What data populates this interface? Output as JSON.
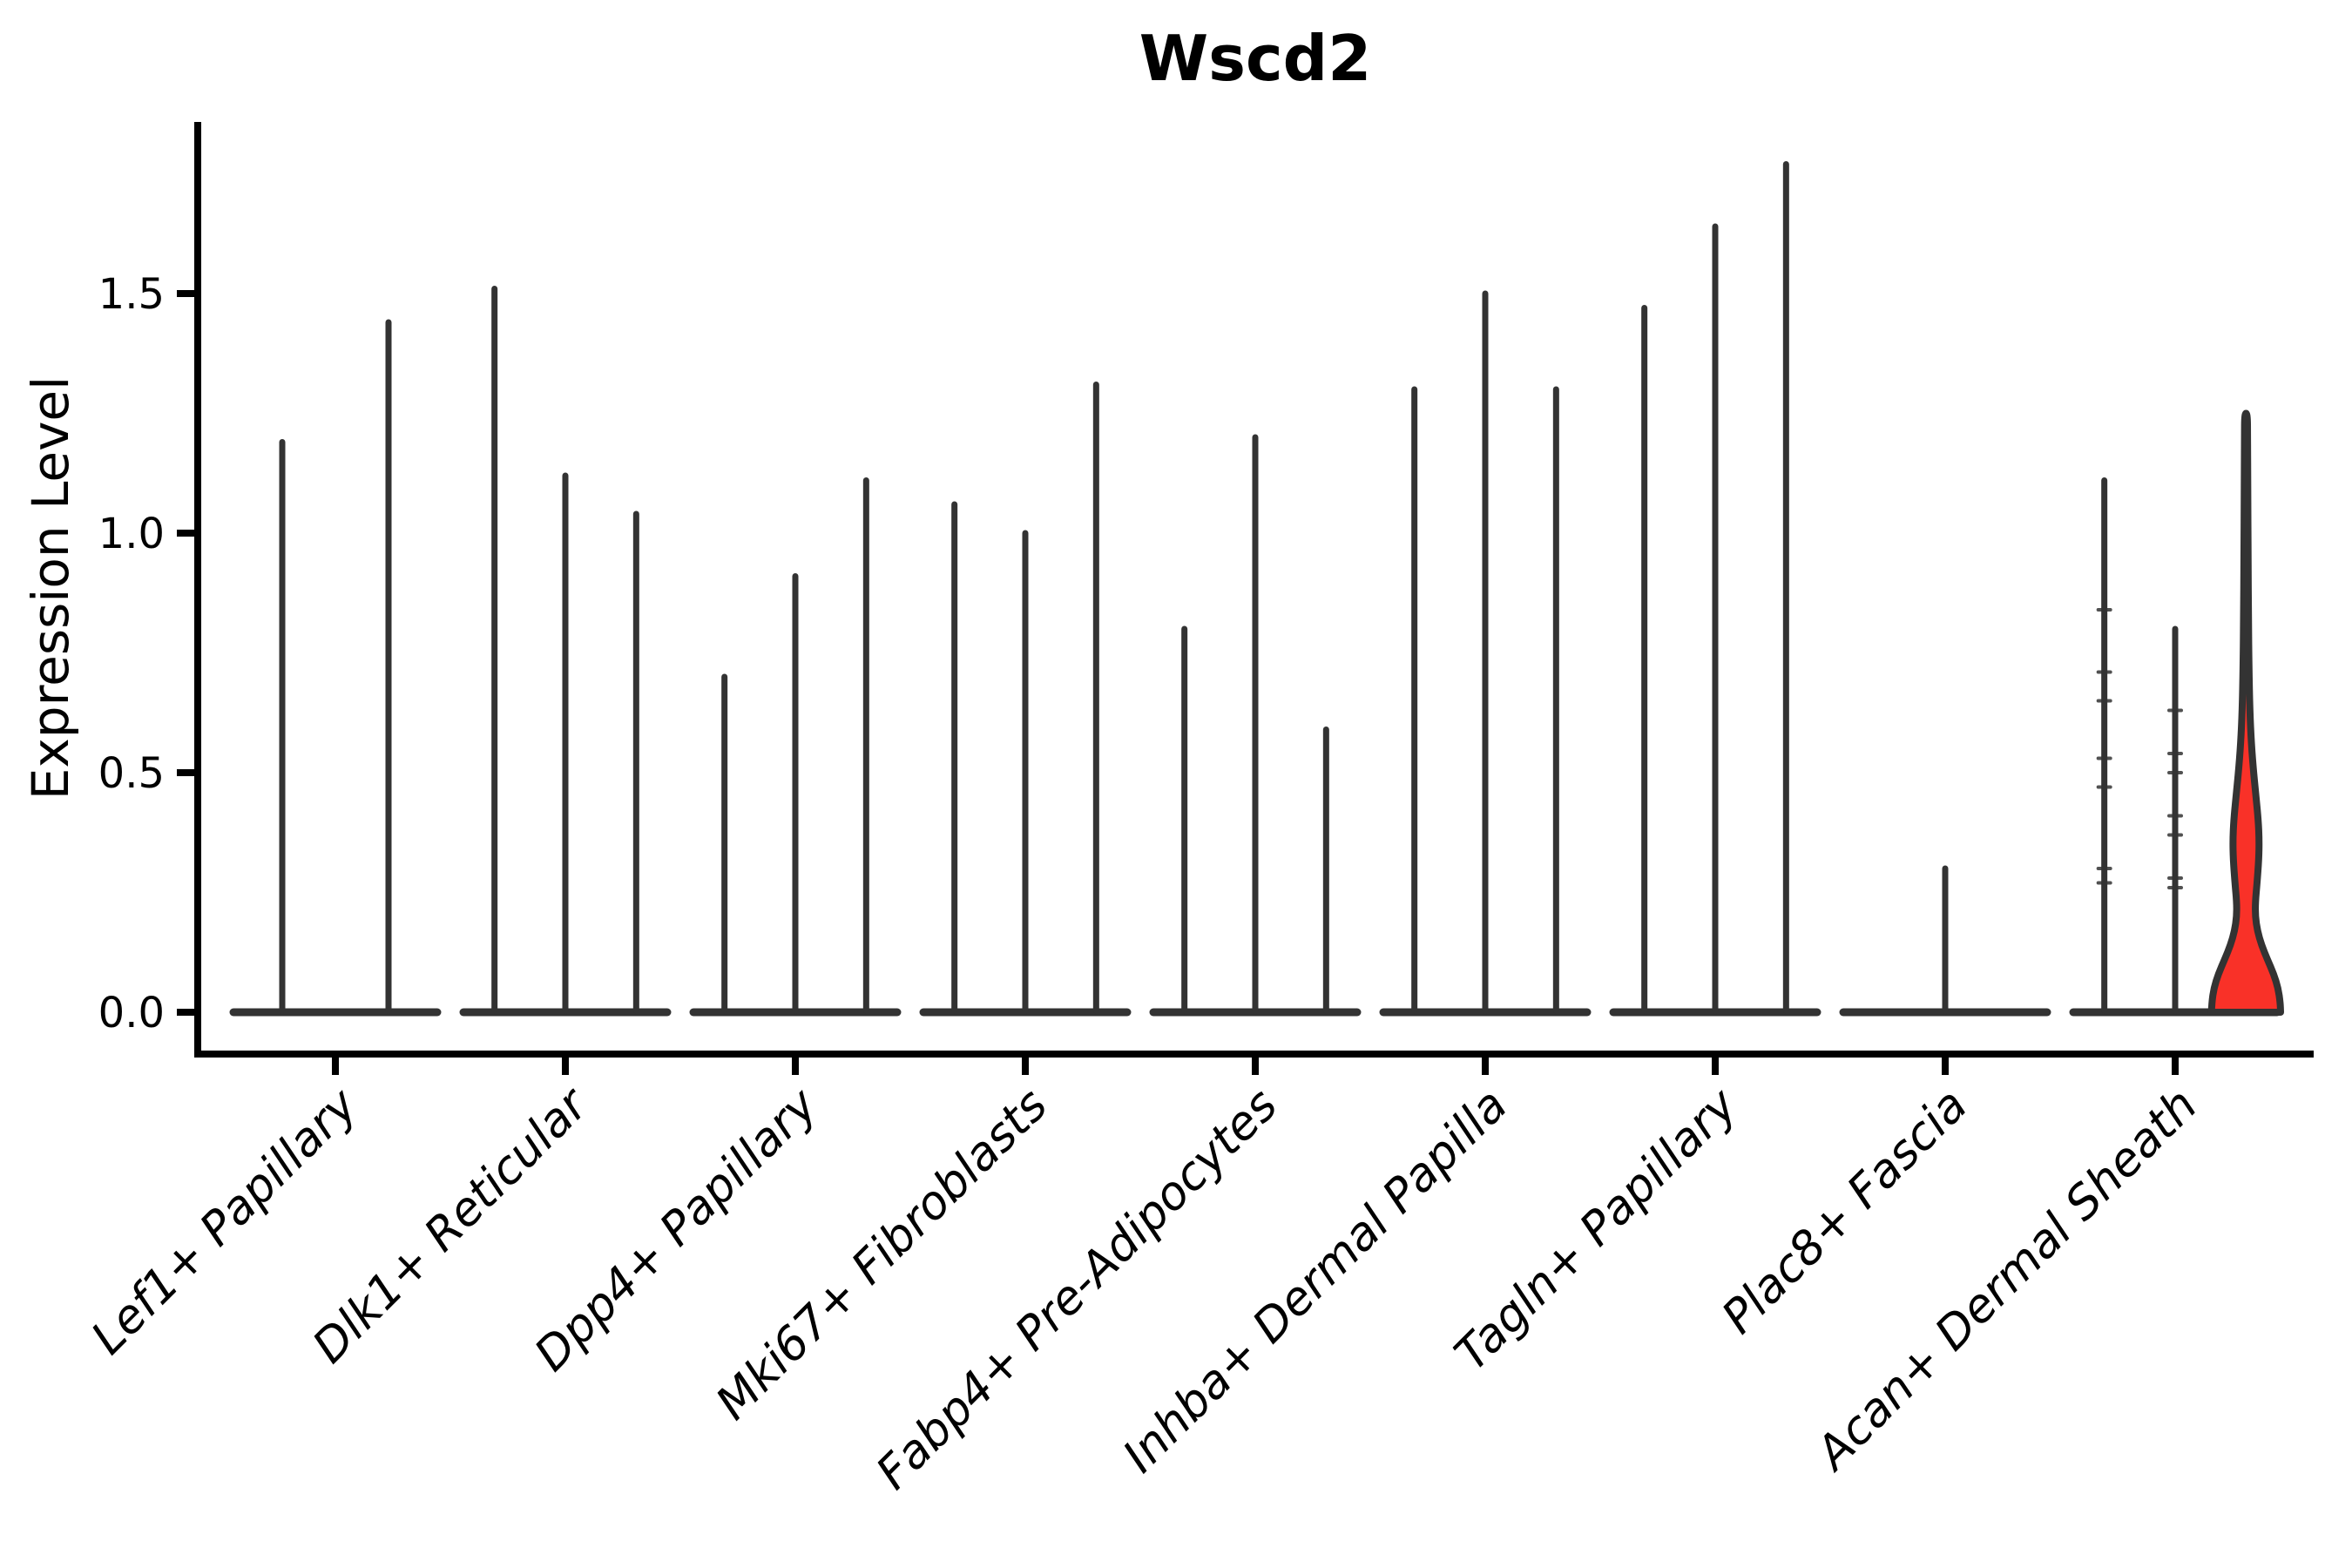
{
  "figure": {
    "background": "#ffffff",
    "colors": {
      "axis": "#000000",
      "text": "#000000",
      "violin_stroke": "#333333",
      "highlight_fill": "#f93128"
    }
  },
  "chart_data": {
    "type": "violin",
    "title": "Wscd2",
    "xlabel": "",
    "ylabel": "Expression Level",
    "ylim": [
      -0.09,
      1.86
    ],
    "grid": false,
    "legend": false,
    "yticks": [
      {
        "label": "0.0",
        "value": 0.0
      },
      {
        "label": "0.5",
        "value": 0.5
      },
      {
        "label": "1.0",
        "value": 1.0
      },
      {
        "label": "1.5",
        "value": 1.5
      }
    ],
    "categories": [
      "Lef1+ Papillary",
      "Dlk1+ Reticular",
      "Dpp4+ Papillary",
      "Mki67+ Fibroblasts",
      "Fabp4+ Pre-Adipocytes",
      "Inhba+ Dermal Papilla",
      "Tagln+ Papillary",
      "Plac8+ Fascia",
      "Acan+ Dermal Sheath"
    ],
    "groups": [
      {
        "category": "Lef1+ Papillary",
        "violins": [
          {
            "peak": 1.19
          },
          {
            "peak": 1.44
          }
        ]
      },
      {
        "category": "Dlk1+ Reticular",
        "violins": [
          {
            "peak": 1.51
          },
          {
            "peak": 1.12
          },
          {
            "peak": 1.04
          }
        ]
      },
      {
        "category": "Dpp4+ Papillary",
        "violins": [
          {
            "peak": 0.7
          },
          {
            "peak": 0.91
          },
          {
            "peak": 1.11
          }
        ]
      },
      {
        "category": "Mki67+ Fibroblasts",
        "violins": [
          {
            "peak": 1.06
          },
          {
            "peak": 1.0
          },
          {
            "peak": 1.31
          }
        ]
      },
      {
        "category": "Fabp4+ Pre-Adipocytes",
        "violins": [
          {
            "peak": 0.8
          },
          {
            "peak": 1.2
          },
          {
            "peak": 0.59
          }
        ]
      },
      {
        "category": "Inhba+ Dermal Papilla",
        "violins": [
          {
            "peak": 1.3
          },
          {
            "peak": 1.5
          },
          {
            "peak": 1.3
          }
        ]
      },
      {
        "category": "Tagln+ Papillary",
        "violins": [
          {
            "peak": 1.47
          },
          {
            "peak": 1.64
          },
          {
            "peak": 1.77
          }
        ]
      },
      {
        "category": "Plac8+ Fascia",
        "violins": [
          {
            "peak": 0
          },
          {
            "peak": 0.3
          },
          {
            "peak": 0
          }
        ]
      },
      {
        "category": "Acan+ Dermal Sheath",
        "violins": [
          {
            "peak": 1.11,
            "marks": [
              0.84,
              0.71,
              0.65,
              0.53,
              0.47,
              0.3,
              0.27
            ]
          },
          {
            "peak": 0.8,
            "marks": [
              0.63,
              0.54,
              0.5,
              0.41,
              0.37,
              0.28,
              0.26
            ]
          },
          {
            "peak": 1.25,
            "highlighted": true,
            "profile": [
              [
                0.0,
                1.0
              ],
              [
                0.02,
                0.99
              ],
              [
                0.05,
                0.93
              ],
              [
                0.08,
                0.8
              ],
              [
                0.11,
                0.62
              ],
              [
                0.14,
                0.45
              ],
              [
                0.17,
                0.33
              ],
              [
                0.2,
                0.27
              ],
              [
                0.23,
                0.27
              ],
              [
                0.27,
                0.32
              ],
              [
                0.32,
                0.37
              ],
              [
                0.36,
                0.38
              ],
              [
                0.4,
                0.355
              ],
              [
                0.45,
                0.29
              ],
              [
                0.5,
                0.22
              ],
              [
                0.56,
                0.155
              ],
              [
                0.63,
                0.11
              ],
              [
                0.72,
                0.085
              ],
              [
                0.82,
                0.07
              ],
              [
                0.95,
                0.06
              ],
              [
                1.1,
                0.05
              ],
              [
                1.2,
                0.045
              ],
              [
                1.25,
                0.04
              ]
            ]
          }
        ]
      }
    ]
  }
}
